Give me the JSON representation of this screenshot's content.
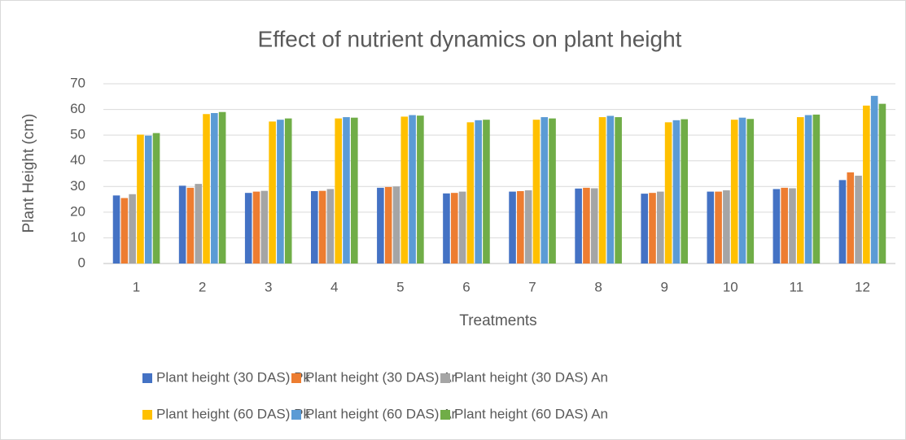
{
  "chart_data": {
    "type": "bar",
    "title": "Effect of nutrient dynamics on plant height",
    "x_label": "Treatments",
    "y_label": "Plant  Height (cm)",
    "categories": [
      "1",
      "2",
      "3",
      "4",
      "5",
      "6",
      "7",
      "8",
      "9",
      "10",
      "11",
      "12"
    ],
    "series": [
      {
        "name": "Plant height (30 DAS) Pk",
        "color": "#4472c4",
        "values": [
          26.5,
          30.3,
          27.5,
          28.2,
          29.5,
          27.3,
          28,
          29.2,
          27.2,
          28,
          29,
          32.5
        ]
      },
      {
        "name": "Plant height (30 DAS) Ar",
        "color": "#ed7d31",
        "values": [
          25.5,
          29.5,
          28,
          28.3,
          29.8,
          27.5,
          28.2,
          29.5,
          27.5,
          28,
          29.5,
          35.5
        ]
      },
      {
        "name": "Plant height (30 DAS) An",
        "color": "#a5a5a5",
        "values": [
          27,
          31,
          28.3,
          29,
          30,
          28,
          28.5,
          29.3,
          28,
          28.5,
          29.3,
          34.2
        ]
      },
      {
        "name": "Plant height (60 DAS) Pk",
        "color": "#ffc000",
        "values": [
          50.2,
          58.2,
          55.3,
          56.5,
          57.2,
          55,
          56,
          57,
          55,
          56,
          57,
          61.5
        ]
      },
      {
        "name": "Plant height (60 DAS) Ar",
        "color": "#5b9bd5",
        "values": [
          49.8,
          58.6,
          56,
          57,
          57.8,
          55.8,
          57,
          57.5,
          55.8,
          56.8,
          57.8,
          65.3
        ]
      },
      {
        "name": "Plant height (60 DAS) An",
        "color": "#70ad47",
        "values": [
          50.8,
          59,
          56.5,
          56.8,
          57.6,
          56,
          56.5,
          57,
          56.2,
          56.3,
          58,
          62.2
        ]
      }
    ],
    "ylim": [
      0,
      70
    ],
    "yticks": [
      0,
      10,
      20,
      30,
      40,
      50,
      60,
      70
    ],
    "grid": true,
    "legend": "bottom"
  }
}
